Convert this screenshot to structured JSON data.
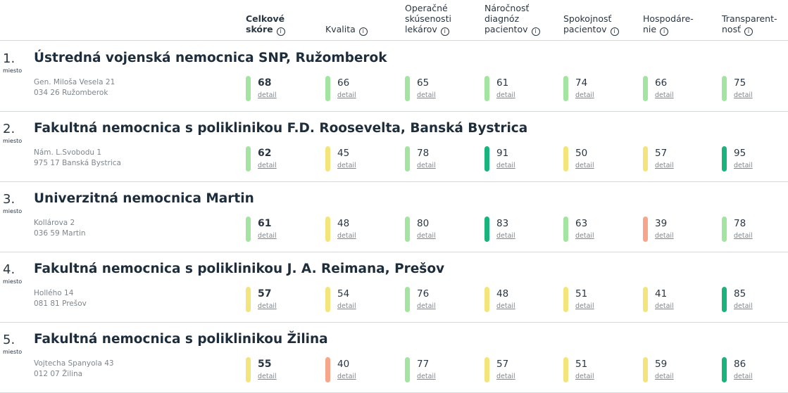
{
  "header": {
    "columns": [
      {
        "label": "Celkové\nskóre",
        "bold": true
      },
      {
        "label": "Kvalita"
      },
      {
        "label": "Operačné\nskúsenosti\nlekárov"
      },
      {
        "label": "Náročnosť\ndiagnóz\npacientov"
      },
      {
        "label": "Spokojnosť\npacientov"
      },
      {
        "label": "Hospodáre-\nnie"
      },
      {
        "label": "Transparent-\nnosť"
      }
    ],
    "info_glyph": "i"
  },
  "rank_suffix": "miesto",
  "detail_label": "detail",
  "colors": {
    "light": "#a2e4a0",
    "yellow": "#f3e57c",
    "dark": "#18b47b",
    "salmon": "#f7a68c"
  },
  "hospitals": [
    {
      "rank": "1.",
      "name": "Ústredná vojenská nemocnica SNP, Ružomberok",
      "address": [
        "Gen. Miloša Vesela 21",
        "034 26 Ružomberok"
      ],
      "scores": [
        {
          "v": 68,
          "c": "light"
        },
        {
          "v": 66,
          "c": "light"
        },
        {
          "v": 65,
          "c": "light"
        },
        {
          "v": 61,
          "c": "light"
        },
        {
          "v": 74,
          "c": "light"
        },
        {
          "v": 66,
          "c": "light"
        },
        {
          "v": 75,
          "c": "light"
        }
      ]
    },
    {
      "rank": "2.",
      "name": "Fakultná nemocnica s poliklinikou F.D. Roosevelta, Banská Bystrica",
      "address": [
        "Nám. L.Svobodu 1",
        "975 17 Banská Bystrica"
      ],
      "scores": [
        {
          "v": 62,
          "c": "light"
        },
        {
          "v": 45,
          "c": "yellow"
        },
        {
          "v": 78,
          "c": "light"
        },
        {
          "v": 91,
          "c": "dark"
        },
        {
          "v": 50,
          "c": "yellow"
        },
        {
          "v": 57,
          "c": "yellow"
        },
        {
          "v": 95,
          "c": "dark"
        }
      ]
    },
    {
      "rank": "3.",
      "name": "Univerzitná nemocnica Martin",
      "address": [
        "Kollárova 2",
        "036 59 Martin"
      ],
      "scores": [
        {
          "v": 61,
          "c": "light"
        },
        {
          "v": 48,
          "c": "yellow"
        },
        {
          "v": 80,
          "c": "light"
        },
        {
          "v": 83,
          "c": "dark"
        },
        {
          "v": 63,
          "c": "light"
        },
        {
          "v": 39,
          "c": "salmon"
        },
        {
          "v": 78,
          "c": "light"
        }
      ]
    },
    {
      "rank": "4.",
      "name": "Fakultná nemocnica s poliklinikou J. A. Reimana, Prešov",
      "address": [
        "Hollého 14",
        "081 81 Prešov"
      ],
      "scores": [
        {
          "v": 57,
          "c": "yellow"
        },
        {
          "v": 54,
          "c": "yellow"
        },
        {
          "v": 76,
          "c": "light"
        },
        {
          "v": 48,
          "c": "yellow"
        },
        {
          "v": 51,
          "c": "yellow"
        },
        {
          "v": 41,
          "c": "yellow"
        },
        {
          "v": 85,
          "c": "dark"
        }
      ]
    },
    {
      "rank": "5.",
      "name": "Fakultná nemocnica s poliklinikou Žilina",
      "address": [
        "Vojtecha Spanyola 43",
        "012 07 Žilina"
      ],
      "scores": [
        {
          "v": 55,
          "c": "yellow"
        },
        {
          "v": 40,
          "c": "salmon"
        },
        {
          "v": 77,
          "c": "light"
        },
        {
          "v": 57,
          "c": "yellow"
        },
        {
          "v": 51,
          "c": "yellow"
        },
        {
          "v": 59,
          "c": "yellow"
        },
        {
          "v": 86,
          "c": "dark"
        }
      ]
    }
  ]
}
